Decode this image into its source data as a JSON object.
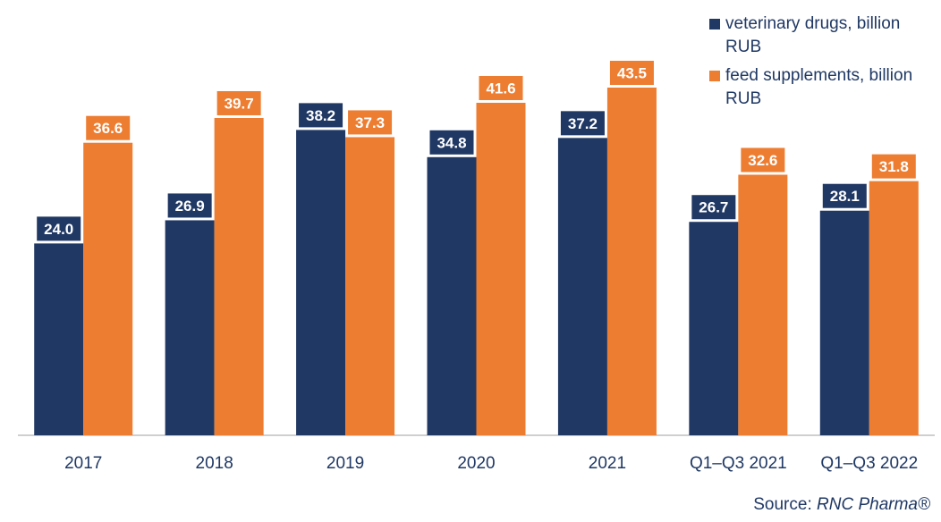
{
  "chart_data": {
    "type": "bar",
    "categories": [
      "2017",
      "2018",
      "2019",
      "2020",
      "2021",
      "Q1–Q3 2021",
      "Q1–Q3 2022"
    ],
    "series": [
      {
        "name": "veterinary drugs, billion RUB",
        "color": "#203864",
        "values": [
          24.0,
          26.9,
          38.2,
          34.8,
          37.2,
          26.7,
          28.1
        ],
        "labels": [
          "24.0",
          "26.9",
          "38.2",
          "34.8",
          "37.2",
          "26.7",
          "28.1"
        ]
      },
      {
        "name": "feed supplements, billion RUB",
        "color": "#ed7d31",
        "values": [
          36.6,
          39.7,
          37.3,
          41.6,
          43.5,
          32.6,
          31.8
        ],
        "labels": [
          "36.6",
          "39.7",
          "37.3",
          "41.6",
          "43.5",
          "32.6",
          "31.8"
        ]
      }
    ],
    "ylim": [
      0,
      43.5
    ],
    "grid": false,
    "legend_position": "top-right",
    "axis_color": "#bfbfbf",
    "text_color": "#1f3864"
  },
  "source": {
    "prefix": "Source: ",
    "brand": "RNC Pharma®"
  }
}
